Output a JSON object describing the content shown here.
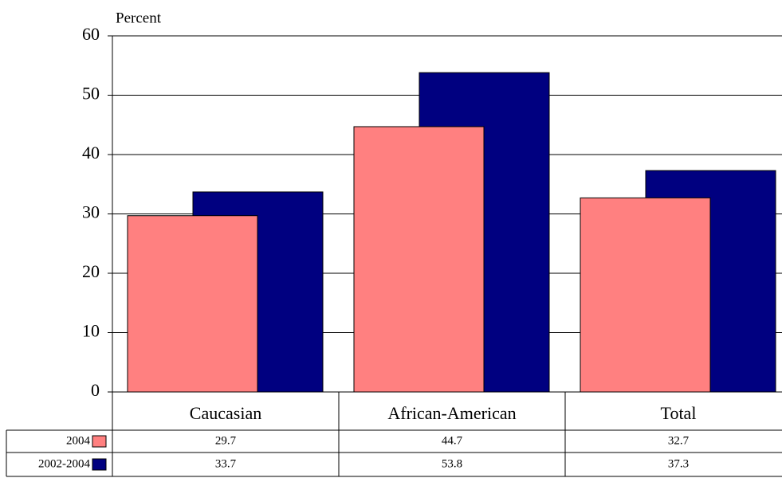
{
  "chart_data": {
    "type": "bar",
    "y_label": "Percent",
    "categories": [
      "Caucasian",
      "African-American",
      "Total"
    ],
    "series": [
      {
        "name": "2004",
        "color": "#ff8080",
        "values": [
          29.7,
          44.7,
          32.7
        ]
      },
      {
        "name": "2002-2004",
        "color": "#000080",
        "values": [
          33.7,
          53.8,
          37.3
        ]
      }
    ],
    "ylim": [
      0,
      60
    ],
    "yticks": [
      0,
      10,
      20,
      30,
      40,
      50,
      60
    ],
    "grid": true,
    "data_table": true
  }
}
